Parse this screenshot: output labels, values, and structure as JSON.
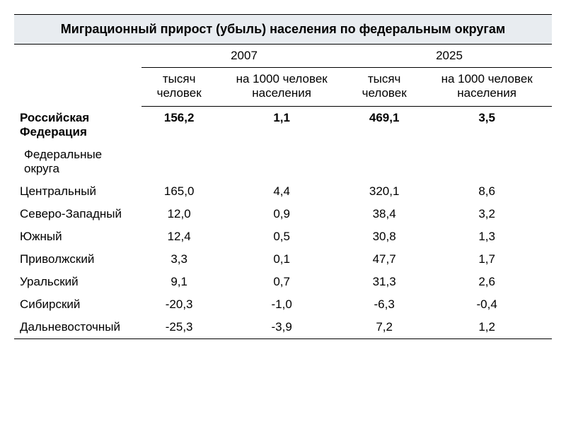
{
  "title": "Миграционный прирост (убыль) населения по федеральным округам",
  "headers": {
    "year1": "2007",
    "year2": "2025",
    "thousands": "тысяч человек",
    "per1000": "на 1000 человек населения"
  },
  "total": {
    "label": "Российская Федерация",
    "y1_thousands": "156,2",
    "y1_per1000": "1,1",
    "y2_thousands": "469,1",
    "y2_per1000": "3,5"
  },
  "section_label": "Федеральные округа",
  "rows": [
    {
      "label": "Центральный",
      "y1_thousands": "165,0",
      "y1_per1000": "4,4",
      "y2_thousands": "320,1",
      "y2_per1000": "8,6"
    },
    {
      "label": "Северо-Западный",
      "y1_thousands": "12,0",
      "y1_per1000": "0,9",
      "y2_thousands": "38,4",
      "y2_per1000": "3,2"
    },
    {
      "label": "Южный",
      "y1_thousands": "12,4",
      "y1_per1000": "0,5",
      "y2_thousands": "30,8",
      "y2_per1000": "1,3"
    },
    {
      "label": "Приволжский",
      "y1_thousands": "3,3",
      "y1_per1000": "0,1",
      "y2_thousands": "47,7",
      "y2_per1000": "1,7"
    },
    {
      "label": "Уральский",
      "y1_thousands": "9,1",
      "y1_per1000": "0,7",
      "y2_thousands": "31,3",
      "y2_per1000": "2,6"
    },
    {
      "label": "Сибирский",
      "y1_thousands": "-20,3",
      "y1_per1000": "-1,0",
      "y2_thousands": "-6,3",
      "y2_per1000": "-0,4"
    },
    {
      "label": "Дальневосточный",
      "y1_thousands": "-25,3",
      "y1_per1000": "-3,9",
      "y2_thousands": "7,2",
      "y2_per1000": "1,2"
    }
  ]
}
